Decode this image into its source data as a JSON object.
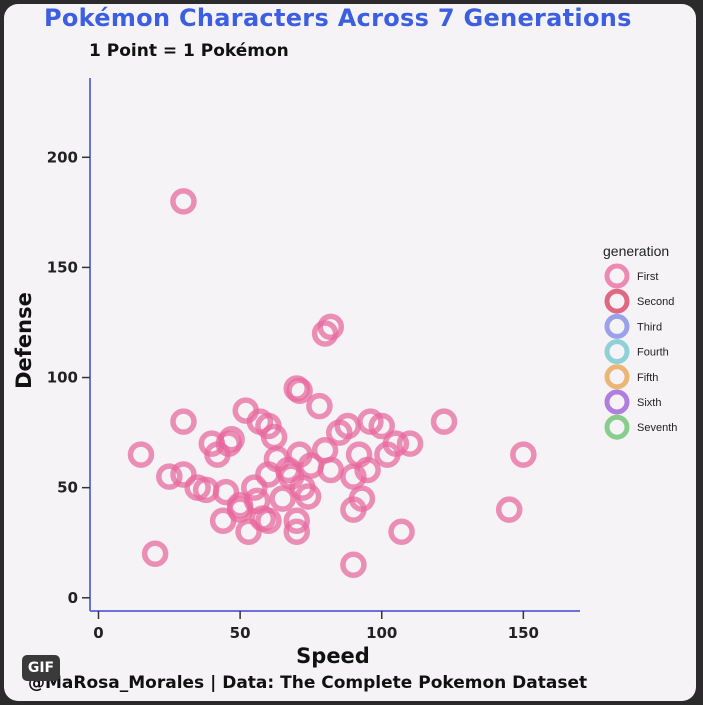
{
  "header": {
    "title": "Pokémon Characters Across 7 Generations",
    "subtitle": "1 Point = 1 Pokémon"
  },
  "footer": {
    "caption": "@MaRosa_Morales | Data: The Complete Pokemon Dataset",
    "gif_badge": "GIF"
  },
  "chart_data": {
    "type": "scatter",
    "title": "Pokémon Characters Across 7 Generations",
    "subtitle": "1 Point = 1 Pokémon",
    "xlabel": "Speed",
    "ylabel": "Defense",
    "xlim": [
      -3,
      170
    ],
    "ylim": [
      -6,
      236
    ],
    "x_ticks": [
      0,
      50,
      100,
      150
    ],
    "y_ticks": [
      0,
      50,
      100,
      150,
      200
    ],
    "grid": false,
    "marker": "hollow-circle",
    "legend": {
      "title": "generation",
      "placement": "right",
      "entries": [
        {
          "label": "First",
          "color": "#e8679c"
        },
        {
          "label": "Second",
          "color": "#d83a5c"
        },
        {
          "label": "Third",
          "color": "#7b86e6"
        },
        {
          "label": "Fourth",
          "color": "#6cc6cb"
        },
        {
          "label": "Fifth",
          "color": "#e8a24c"
        },
        {
          "label": "Sixth",
          "color": "#9b57d6"
        },
        {
          "label": "Seventh",
          "color": "#61c068"
        }
      ]
    },
    "series": [
      {
        "name": "First",
        "color": "#e8679c",
        "points": [
          [
            30,
            180
          ],
          [
            80,
            120
          ],
          [
            82,
            123
          ],
          [
            78,
            87
          ],
          [
            70,
            95
          ],
          [
            71,
            94
          ],
          [
            15,
            65
          ],
          [
            25,
            55
          ],
          [
            30,
            80
          ],
          [
            30,
            56
          ],
          [
            35,
            50
          ],
          [
            38,
            49
          ],
          [
            40,
            70
          ],
          [
            42,
            65
          ],
          [
            44,
            35
          ],
          [
            45,
            48
          ],
          [
            46,
            70
          ],
          [
            47,
            72
          ],
          [
            50,
            42
          ],
          [
            50,
            40
          ],
          [
            52,
            85
          ],
          [
            53,
            30
          ],
          [
            55,
            50
          ],
          [
            56,
            44
          ],
          [
            57,
            80
          ],
          [
            58,
            36
          ],
          [
            60,
            78
          ],
          [
            60,
            56
          ],
          [
            62,
            73
          ],
          [
            63,
            63
          ],
          [
            65,
            45
          ],
          [
            67,
            58
          ],
          [
            68,
            55
          ],
          [
            70,
            35
          ],
          [
            70,
            30
          ],
          [
            71,
            65
          ],
          [
            72,
            50
          ],
          [
            74,
            46
          ],
          [
            75,
            60
          ],
          [
            80,
            67
          ],
          [
            82,
            58
          ],
          [
            85,
            75
          ],
          [
            88,
            78
          ],
          [
            90,
            55
          ],
          [
            90,
            40
          ],
          [
            92,
            65
          ],
          [
            93,
            45
          ],
          [
            95,
            58
          ],
          [
            96,
            80
          ],
          [
            100,
            78
          ],
          [
            102,
            65
          ],
          [
            105,
            70
          ],
          [
            107,
            30
          ],
          [
            110,
            70
          ],
          [
            122,
            80
          ],
          [
            145,
            40
          ],
          [
            150,
            65
          ],
          [
            20,
            20
          ],
          [
            90,
            15
          ],
          [
            60,
            35
          ]
        ]
      }
    ]
  }
}
